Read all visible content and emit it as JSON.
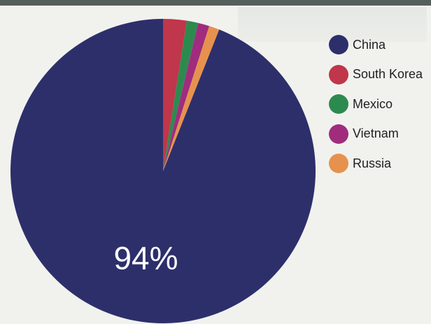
{
  "chart_data": {
    "type": "pie",
    "categories": [
      "China",
      "South Korea",
      "Mexico",
      "Vietnam",
      "Russia"
    ],
    "values": [
      94,
      2.5,
      1.2,
      1.2,
      1.1
    ],
    "colors": [
      "#2d2f6b",
      "#c0364b",
      "#2d8a4f",
      "#a02c7e",
      "#e6924e"
    ],
    "data_labels": [
      {
        "category": "China",
        "text": "94%"
      }
    ],
    "title": "",
    "legend_position": "right"
  }
}
